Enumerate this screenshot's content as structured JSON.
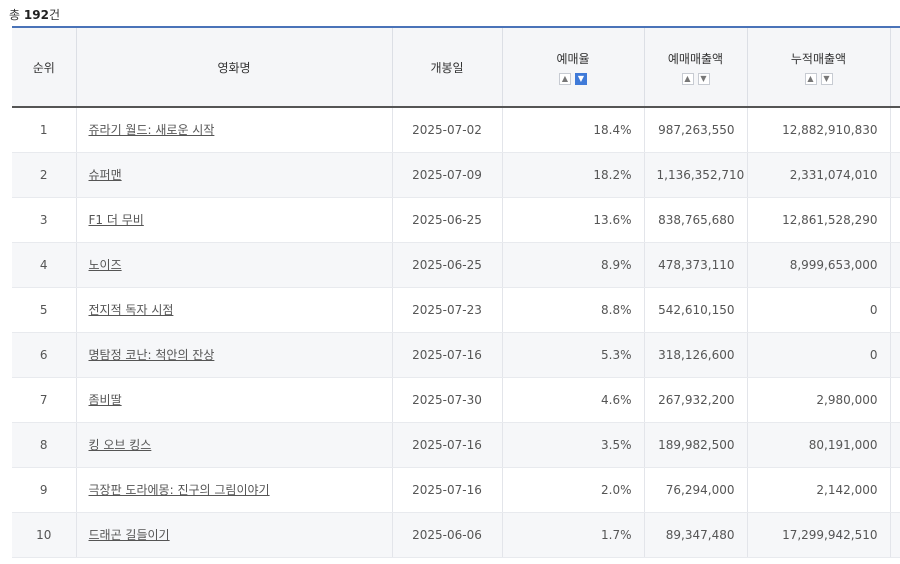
{
  "total": {
    "prefix": "총",
    "count": "192",
    "suffix": "건"
  },
  "columns": {
    "rank": "순위",
    "title": "영화명",
    "release": "개봉일",
    "rate": "예매율",
    "sales": "예매매출액",
    "cumulative": "누적매출액"
  },
  "sort_icons": {
    "up": "▲",
    "down": "▼"
  },
  "rows": [
    {
      "rank": "1",
      "title": "쥬라기 월드: 새로운 시작",
      "release": "2025-07-02",
      "rate": "18.4%",
      "sales": "987,263,550",
      "cumulative": "12,882,910,830"
    },
    {
      "rank": "2",
      "title": "슈퍼맨",
      "release": "2025-07-09",
      "rate": "18.2%",
      "sales": "1,136,352,710",
      "cumulative": "2,331,074,010"
    },
    {
      "rank": "3",
      "title": "F1 더 무비",
      "release": "2025-06-25",
      "rate": "13.6%",
      "sales": "838,765,680",
      "cumulative": "12,861,528,290"
    },
    {
      "rank": "4",
      "title": "노이즈",
      "release": "2025-06-25",
      "rate": "8.9%",
      "sales": "478,373,110",
      "cumulative": "8,999,653,000"
    },
    {
      "rank": "5",
      "title": "전지적 독자 시점",
      "release": "2025-07-23",
      "rate": "8.8%",
      "sales": "542,610,150",
      "cumulative": "0"
    },
    {
      "rank": "6",
      "title": "명탐정 코난: 척안의 잔상",
      "release": "2025-07-16",
      "rate": "5.3%",
      "sales": "318,126,600",
      "cumulative": "0"
    },
    {
      "rank": "7",
      "title": "좀비딸",
      "release": "2025-07-30",
      "rate": "4.6%",
      "sales": "267,932,200",
      "cumulative": "2,980,000"
    },
    {
      "rank": "8",
      "title": "킹 오브 킹스",
      "release": "2025-07-16",
      "rate": "3.5%",
      "sales": "189,982,500",
      "cumulative": "80,191,000"
    },
    {
      "rank": "9",
      "title": "극장판 도라에몽: 진구의 그림이야기",
      "release": "2025-07-16",
      "rate": "2.0%",
      "sales": "76,294,000",
      "cumulative": "2,142,000"
    },
    {
      "rank": "10",
      "title": "드래곤 길들이기",
      "release": "2025-06-06",
      "rate": "1.7%",
      "sales": "89,347,480",
      "cumulative": "17,299,942,510"
    }
  ]
}
